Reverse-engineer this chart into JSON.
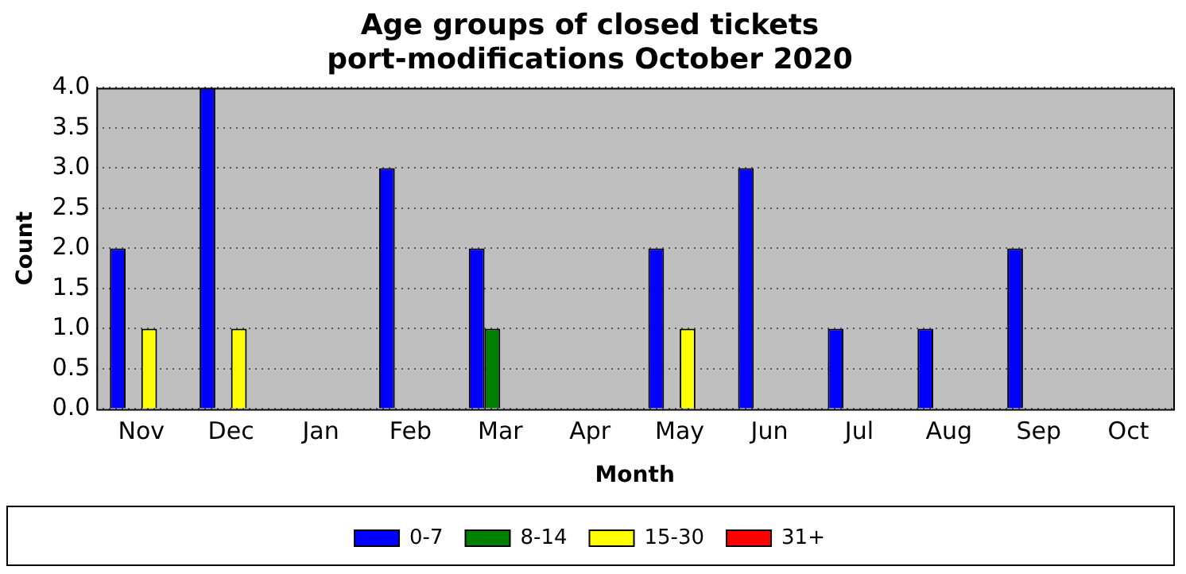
{
  "chart_data": {
    "type": "bar",
    "title": "Age groups of closed tickets\nport-modifications October 2020",
    "xlabel": "Month",
    "ylabel": "Count",
    "categories": [
      "Nov",
      "Dec",
      "Jan",
      "Feb",
      "Mar",
      "Apr",
      "May",
      "Jun",
      "Jul",
      "Aug",
      "Sep",
      "Oct"
    ],
    "series": [
      {
        "name": "0-7",
        "color": "#0000ff",
        "values": [
          2,
          4,
          0,
          3,
          2,
          0,
          2,
          3,
          1,
          1,
          2,
          0
        ]
      },
      {
        "name": "8-14",
        "color": "#008000",
        "values": [
          0,
          0,
          0,
          0,
          1,
          0,
          0,
          0,
          0,
          0,
          0,
          0
        ]
      },
      {
        "name": "15-30",
        "color": "#ffff00",
        "values": [
          1,
          1,
          0,
          0,
          0,
          0,
          1,
          0,
          0,
          0,
          0,
          0
        ]
      },
      {
        "name": "31+",
        "color": "#ff0000",
        "values": [
          0,
          0,
          0,
          0,
          0,
          0,
          0,
          0,
          0,
          0,
          0,
          0
        ]
      }
    ],
    "ylim": [
      0,
      4
    ],
    "yticks": [
      {
        "value": 0,
        "label": "0.0"
      },
      {
        "value": 0.5,
        "label": "0.5"
      },
      {
        "value": 1,
        "label": "1.0"
      },
      {
        "value": 1.5,
        "label": "1.5"
      },
      {
        "value": 2,
        "label": "2.0"
      },
      {
        "value": 2.5,
        "label": "2.5"
      },
      {
        "value": 3,
        "label": "3.0"
      },
      {
        "value": 3.5,
        "label": "3.5"
      },
      {
        "value": 4,
        "label": "4.0"
      }
    ],
    "grid": "y",
    "legend": "bottom"
  }
}
